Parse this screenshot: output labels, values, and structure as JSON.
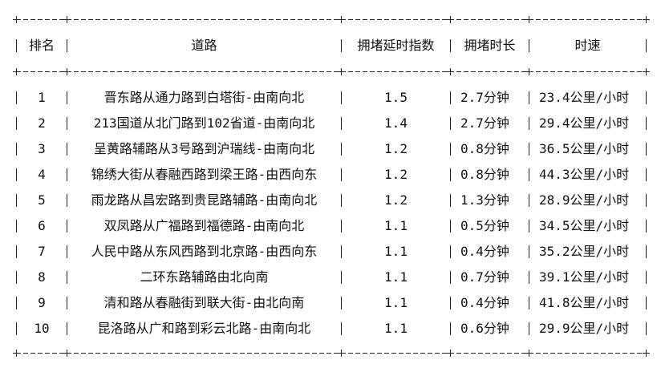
{
  "table": {
    "headers": [
      "排名",
      "道路",
      "拥堵延时指数",
      "拥堵时长",
      "时速"
    ],
    "rows": [
      {
        "rank": "1",
        "road": "晋东路从通力路到白塔街-由南向北",
        "index": "1.5",
        "duration": "2.7分钟",
        "speed": "23.4公里/小时"
      },
      {
        "rank": "2",
        "road": "213国道从北门路到102省道-由南向北",
        "index": "1.4",
        "duration": "2.7分钟",
        "speed": "29.4公里/小时"
      },
      {
        "rank": "3",
        "road": "呈黄路辅路从3号路到沪瑞线-由南向北",
        "index": "1.2",
        "duration": "0.8分钟",
        "speed": "36.5公里/小时"
      },
      {
        "rank": "4",
        "road": "锦绣大街从春融西路到梁王路-由西向东",
        "index": "1.2",
        "duration": "0.8分钟",
        "speed": "44.3公里/小时"
      },
      {
        "rank": "5",
        "road": "雨龙路从昌宏路到贵昆路辅路-由南向北",
        "index": "1.2",
        "duration": "1.3分钟",
        "speed": "28.9公里/小时"
      },
      {
        "rank": "6",
        "road": "双凤路从广福路到福德路-由南向北",
        "index": "1.1",
        "duration": "0.5分钟",
        "speed": "34.5公里/小时"
      },
      {
        "rank": "7",
        "road": "人民中路从东风西路到北京路-由西向东",
        "index": "1.1",
        "duration": "0.4分钟",
        "speed": "35.2公里/小时"
      },
      {
        "rank": "8",
        "road": "二环东路辅路由北向南",
        "index": "1.1",
        "duration": "0.7分钟",
        "speed": "39.1公里/小时"
      },
      {
        "rank": "9",
        "road": "清和路从春融街到联大街-由北向南",
        "index": "1.1",
        "duration": "0.4分钟",
        "speed": "41.8公里/小时"
      },
      {
        "rank": "10",
        "road": "昆洛路从广和路到彩云北路-由南向北",
        "index": "1.1",
        "duration": "0.6分钟",
        "speed": "29.9公里/小时"
      }
    ]
  }
}
